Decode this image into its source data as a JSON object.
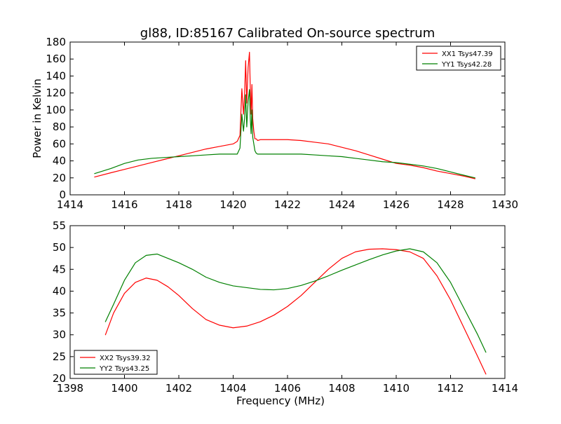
{
  "figure": {
    "title": "gl88, ID:85167 Calibrated On-source spectrum"
  },
  "chart_data": [
    {
      "type": "line",
      "title": "gl88, ID:85167 Calibrated On-source spectrum",
      "xlabel": "",
      "ylabel": "Power in Kelvin",
      "xlim": [
        1414,
        1430
      ],
      "ylim": [
        0,
        180
      ],
      "xticks": [
        1414,
        1416,
        1418,
        1420,
        1422,
        1424,
        1426,
        1428,
        1430
      ],
      "yticks": [
        0,
        20,
        40,
        60,
        80,
        100,
        120,
        140,
        160,
        180
      ],
      "grid": false,
      "legend_position": "upper-right",
      "series": [
        {
          "name": "XX1 Tsys47.39",
          "color": "#ff0000",
          "x": [
            1414.9,
            1415.5,
            1416.0,
            1416.5,
            1417.0,
            1417.5,
            1418.0,
            1418.5,
            1419.0,
            1419.5,
            1420.0,
            1420.15,
            1420.25,
            1420.32,
            1420.38,
            1420.42,
            1420.46,
            1420.5,
            1420.55,
            1420.6,
            1420.63,
            1420.66,
            1420.69,
            1420.72,
            1420.76,
            1420.8,
            1420.85,
            1420.9,
            1421.0,
            1421.1,
            1421.2,
            1421.5,
            1422.0,
            1422.5,
            1423.0,
            1423.5,
            1424.0,
            1424.5,
            1425.0,
            1425.5,
            1426.0,
            1426.5,
            1427.0,
            1427.5,
            1428.0,
            1428.5,
            1428.9
          ],
          "y": [
            21,
            26,
            30,
            34,
            38,
            42,
            46,
            50,
            54,
            57,
            60,
            63,
            70,
            125,
            95,
            118,
            158,
            108,
            150,
            168,
            125,
            95,
            130,
            90,
            75,
            66,
            66,
            64,
            65,
            65,
            65,
            65,
            65,
            64,
            62,
            60,
            56,
            52,
            47,
            42,
            37,
            35,
            32,
            28,
            25,
            22,
            19
          ]
        },
        {
          "name": "YY1 Tsys42.28",
          "color": "#008000",
          "x": [
            1414.9,
            1415.5,
            1416.0,
            1416.5,
            1417.0,
            1417.5,
            1418.0,
            1418.5,
            1419.0,
            1419.5,
            1420.0,
            1420.15,
            1420.25,
            1420.32,
            1420.38,
            1420.42,
            1420.46,
            1420.5,
            1420.55,
            1420.6,
            1420.63,
            1420.66,
            1420.69,
            1420.72,
            1420.76,
            1420.8,
            1420.85,
            1420.9,
            1421.0,
            1421.1,
            1421.2,
            1421.5,
            1422.0,
            1422.5,
            1423.0,
            1423.5,
            1424.0,
            1424.5,
            1425.0,
            1425.5,
            1426.0,
            1426.5,
            1427.0,
            1427.5,
            1428.0,
            1428.5,
            1428.9
          ],
          "y": [
            25,
            31,
            37,
            41,
            43,
            44,
            45,
            46,
            47,
            48,
            48,
            48,
            55,
            95,
            75,
            90,
            118,
            80,
            110,
            124,
            90,
            72,
            100,
            68,
            60,
            52,
            49,
            48,
            48,
            48,
            48,
            48,
            48,
            48,
            47,
            46,
            45,
            43,
            41,
            39,
            38,
            36,
            34,
            31,
            27,
            23,
            20
          ]
        }
      ]
    },
    {
      "type": "line",
      "title": "",
      "xlabel": "Frequency (MHz)",
      "ylabel": "",
      "xlim": [
        1398,
        1414
      ],
      "ylim": [
        20,
        55
      ],
      "xticks": [
        1398,
        1400,
        1402,
        1404,
        1406,
        1408,
        1410,
        1412,
        1414
      ],
      "yticks": [
        20,
        25,
        30,
        35,
        40,
        45,
        50,
        55
      ],
      "grid": false,
      "legend_position": "lower-left",
      "series": [
        {
          "name": "XX2 Tsys39.32",
          "color": "#ff0000",
          "x": [
            1399.3,
            1399.6,
            1400.0,
            1400.4,
            1400.8,
            1401.2,
            1401.6,
            1402.0,
            1402.5,
            1403.0,
            1403.5,
            1404.0,
            1404.5,
            1405.0,
            1405.5,
            1406.0,
            1406.5,
            1407.0,
            1407.5,
            1408.0,
            1408.5,
            1409.0,
            1409.5,
            1410.0,
            1410.5,
            1411.0,
            1411.5,
            1412.0,
            1412.5,
            1413.0,
            1413.3
          ],
          "y": [
            30,
            35,
            39.5,
            42,
            43,
            42.5,
            41,
            39,
            36,
            33.5,
            32.2,
            31.6,
            32,
            33,
            34.5,
            36.5,
            39,
            42,
            45,
            47.5,
            49,
            49.6,
            49.7,
            49.5,
            49,
            47.5,
            43.5,
            38,
            31.5,
            25,
            21
          ]
        },
        {
          "name": "YY2 Tsys43.25",
          "color": "#008000",
          "x": [
            1399.3,
            1399.6,
            1400.0,
            1400.4,
            1400.8,
            1401.2,
            1401.6,
            1402.0,
            1402.5,
            1403.0,
            1403.5,
            1404.0,
            1404.5,
            1405.0,
            1405.5,
            1406.0,
            1406.5,
            1407.0,
            1407.5,
            1408.0,
            1408.5,
            1409.0,
            1409.5,
            1410.0,
            1410.5,
            1411.0,
            1411.5,
            1412.0,
            1412.5,
            1413.0,
            1413.3
          ],
          "y": [
            33,
            37,
            42.5,
            46.5,
            48.2,
            48.5,
            47.5,
            46.5,
            45,
            43.2,
            42,
            41.2,
            40.8,
            40.4,
            40.3,
            40.6,
            41.3,
            42.3,
            43.5,
            44.8,
            46,
            47.2,
            48.3,
            49.2,
            49.7,
            49,
            46.5,
            42,
            36,
            30,
            26
          ]
        }
      ]
    }
  ]
}
